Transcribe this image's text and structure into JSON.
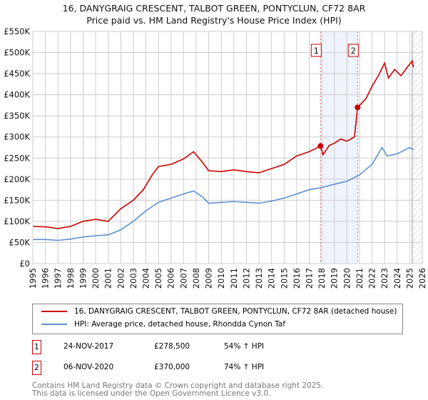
{
  "chart_data": {
    "type": "line",
    "title": "16, DANYGRAIG CRESCENT, TALBOT GREEN, PONTYCLUN, CF72 8AR",
    "subtitle": "Price paid vs. HM Land Registry's House Price Index (HPI)",
    "xlim": [
      1995,
      2026
    ],
    "ylim": [
      0,
      550000
    ],
    "x_ticks": [
      "1995",
      "1996",
      "1997",
      "1998",
      "1999",
      "2000",
      "2001",
      "2002",
      "2003",
      "2004",
      "2005",
      "2006",
      "2007",
      "2008",
      "2009",
      "2010",
      "2011",
      "2012",
      "2013",
      "2014",
      "2015",
      "2016",
      "2017",
      "2018",
      "2019",
      "2020",
      "2021",
      "2022",
      "2023",
      "2024",
      "2025",
      "2026"
    ],
    "y_ticks": [
      {
        "v": 0,
        "l": "£0"
      },
      {
        "v": 50000,
        "l": "£50K"
      },
      {
        "v": 100000,
        "l": "£100K"
      },
      {
        "v": 150000,
        "l": "£150K"
      },
      {
        "v": 200000,
        "l": "£200K"
      },
      {
        "v": 250000,
        "l": "£250K"
      },
      {
        "v": 300000,
        "l": "£300K"
      },
      {
        "v": 350000,
        "l": "£350K"
      },
      {
        "v": 400000,
        "l": "£400K"
      },
      {
        "v": 450000,
        "l": "£450K"
      },
      {
        "v": 500000,
        "l": "£500K"
      },
      {
        "v": 550000,
        "l": "£550K"
      }
    ],
    "grid": true,
    "series": [
      {
        "name": "16, DANYGRAIG CRESCENT, TALBOT GREEN, PONTYCLUN, CF72 8AR (detached house)",
        "color": "#cc0000",
        "points": [
          [
            1995,
            88000
          ],
          [
            1996,
            87000
          ],
          [
            1997,
            83000
          ],
          [
            1998,
            88000
          ],
          [
            1999,
            100000
          ],
          [
            2000,
            105000
          ],
          [
            2001,
            100000
          ],
          [
            2002,
            130000
          ],
          [
            2003,
            150000
          ],
          [
            2003.8,
            175000
          ],
          [
            2004.5,
            210000
          ],
          [
            2005,
            230000
          ],
          [
            2006,
            235000
          ],
          [
            2007,
            248000
          ],
          [
            2007.8,
            265000
          ],
          [
            2008.5,
            240000
          ],
          [
            2009,
            220000
          ],
          [
            2010,
            218000
          ],
          [
            2011,
            222000
          ],
          [
            2012,
            218000
          ],
          [
            2013,
            215000
          ],
          [
            2014,
            225000
          ],
          [
            2015,
            235000
          ],
          [
            2016,
            255000
          ],
          [
            2017,
            265000
          ],
          [
            2017.9,
            278500
          ],
          [
            2018.1,
            258000
          ],
          [
            2018.6,
            280000
          ],
          [
            2019,
            285000
          ],
          [
            2019.5,
            295000
          ],
          [
            2020,
            290000
          ],
          [
            2020.6,
            300000
          ],
          [
            2020.85,
            370000
          ],
          [
            2021.5,
            390000
          ],
          [
            2022,
            420000
          ],
          [
            2022.5,
            445000
          ],
          [
            2023,
            475000
          ],
          [
            2023.3,
            440000
          ],
          [
            2023.8,
            460000
          ],
          [
            2024.3,
            445000
          ],
          [
            2024.8,
            465000
          ],
          [
            2025.2,
            480000
          ],
          [
            2025.3,
            465000
          ]
        ]
      },
      {
        "name": "HPI: Average price, detached house, Rhondda Cynon Taf",
        "color": "#5b8fd0",
        "points": [
          [
            1995,
            57000
          ],
          [
            1996,
            57000
          ],
          [
            1997,
            55000
          ],
          [
            1998,
            58000
          ],
          [
            1999,
            63000
          ],
          [
            2000,
            66000
          ],
          [
            2001,
            68000
          ],
          [
            2002,
            80000
          ],
          [
            2003,
            100000
          ],
          [
            2004,
            125000
          ],
          [
            2005,
            145000
          ],
          [
            2006,
            155000
          ],
          [
            2007,
            165000
          ],
          [
            2007.8,
            172000
          ],
          [
            2008.5,
            158000
          ],
          [
            2009,
            143000
          ],
          [
            2010,
            145000
          ],
          [
            2011,
            147000
          ],
          [
            2012,
            145000
          ],
          [
            2013,
            143000
          ],
          [
            2014,
            148000
          ],
          [
            2015,
            155000
          ],
          [
            2016,
            165000
          ],
          [
            2017,
            175000
          ],
          [
            2018,
            180000
          ],
          [
            2019,
            188000
          ],
          [
            2020,
            195000
          ],
          [
            2021,
            210000
          ],
          [
            2022,
            235000
          ],
          [
            2022.8,
            275000
          ],
          [
            2023.2,
            255000
          ],
          [
            2024,
            260000
          ],
          [
            2025,
            275000
          ],
          [
            2025.3,
            270000
          ]
        ]
      }
    ],
    "sales": [
      {
        "label": "1",
        "x": 2017.9,
        "y": 278500
      },
      {
        "label": "2",
        "x": 2020.85,
        "y": 370000
      }
    ],
    "future_from": 2025.2
  },
  "legend": {
    "red": "16, DANYGRAIG CRESCENT, TALBOT GREEN, PONTYCLUN, CF72 8AR (detached house)",
    "blue": "HPI: Average price, detached house, Rhondda Cynon Taf"
  },
  "table": [
    {
      "n": "1",
      "date": "24-NOV-2017",
      "price": "£278,500",
      "hpi": "54% ↑ HPI"
    },
    {
      "n": "2",
      "date": "06-NOV-2020",
      "price": "£370,000",
      "hpi": "74% ↑ HPI"
    }
  ],
  "footer": {
    "line1": "Contains HM Land Registry data © Crown copyright and database right 2025.",
    "line2": "This data is licensed under the Open Government Licence v3.0."
  }
}
